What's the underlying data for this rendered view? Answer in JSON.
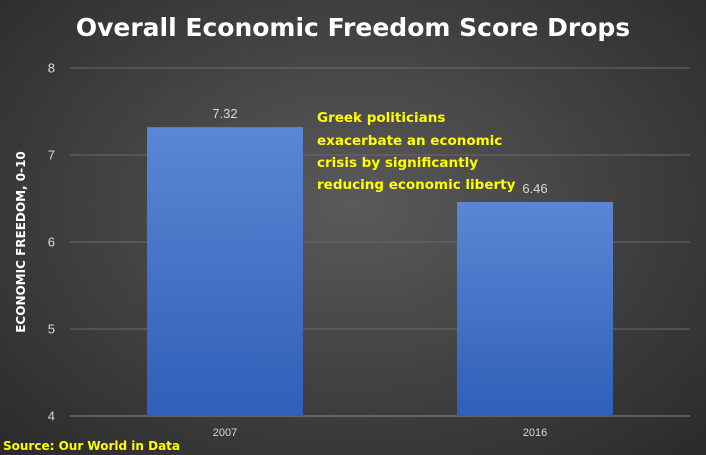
{
  "chart_data": {
    "type": "bar",
    "title": "Overall Economic Freedom Score Drops",
    "ylabel": "ECONOMIC FREEDOM, 0-10",
    "xlabel": "",
    "categories": [
      "2007",
      "2016"
    ],
    "values": [
      7.32,
      6.46
    ],
    "data_labels": [
      "7.32",
      "6.46"
    ],
    "ylim": [
      4,
      8
    ],
    "yticks": [
      "4",
      "5",
      "6",
      "7",
      "8"
    ],
    "grid": true,
    "legend": "none",
    "annotation": {
      "lines": [
        "Greek politicians",
        "exacerbate an economic",
        "crisis by significantly",
        "reducing economic liberty"
      ],
      "color": "#ffff00"
    },
    "source": "Source: Our World in Data",
    "colors": {
      "bar_top": "#5b86d4",
      "bar_bottom": "#2f5fb8",
      "accent": "#ffff00"
    }
  }
}
